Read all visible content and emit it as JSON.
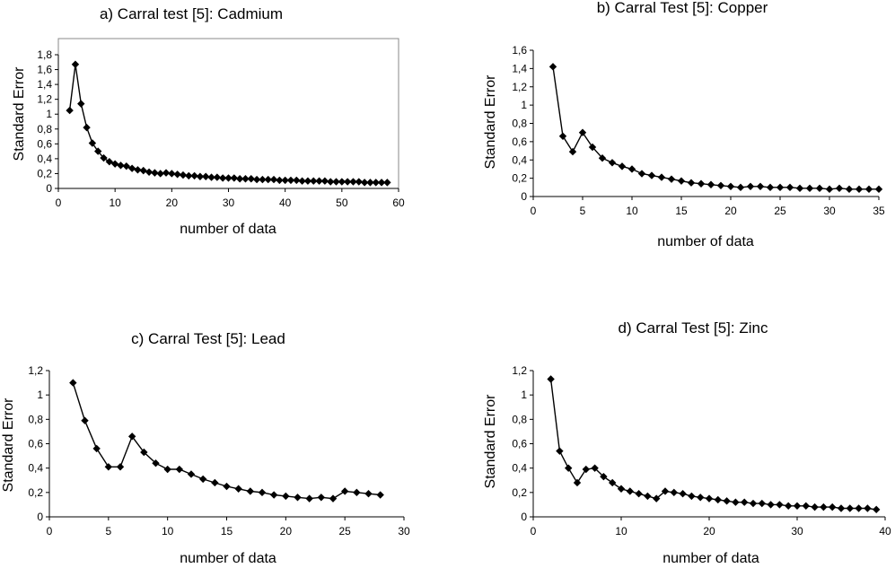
{
  "chart_data": [
    {
      "id": "a",
      "type": "line",
      "title": "a) Carral test [5]: Cadmium",
      "xlabel": "number of data",
      "ylabel": "Standard Error",
      "xlim": [
        0,
        60
      ],
      "ylim": [
        0,
        1.8
      ],
      "xticks": [
        "0",
        "10",
        "20",
        "30",
        "40",
        "50",
        "60"
      ],
      "yticks": [
        "0",
        "0,2",
        "0,4",
        "0,6",
        "0,8",
        "1",
        "1,2",
        "1,4",
        "1,6",
        "1,8"
      ],
      "frame": true,
      "grid": false,
      "marker": "diamond",
      "x": [
        2,
        3,
        4,
        5,
        6,
        7,
        8,
        9,
        10,
        11,
        12,
        13,
        14,
        15,
        16,
        17,
        18,
        19,
        20,
        21,
        22,
        23,
        24,
        25,
        26,
        27,
        28,
        29,
        30,
        31,
        32,
        33,
        34,
        35,
        36,
        37,
        38,
        39,
        40,
        41,
        42,
        43,
        44,
        45,
        46,
        47,
        48,
        49,
        50,
        51,
        52,
        53,
        54,
        55,
        56,
        57,
        58
      ],
      "y": [
        1.05,
        1.67,
        1.14,
        0.82,
        0.61,
        0.5,
        0.41,
        0.36,
        0.33,
        0.31,
        0.3,
        0.27,
        0.25,
        0.24,
        0.22,
        0.21,
        0.2,
        0.21,
        0.2,
        0.19,
        0.18,
        0.17,
        0.17,
        0.16,
        0.16,
        0.15,
        0.15,
        0.14,
        0.14,
        0.14,
        0.13,
        0.13,
        0.13,
        0.12,
        0.12,
        0.12,
        0.12,
        0.11,
        0.11,
        0.11,
        0.11,
        0.1,
        0.1,
        0.1,
        0.1,
        0.1,
        0.09,
        0.09,
        0.09,
        0.09,
        0.09,
        0.09,
        0.08,
        0.08,
        0.08,
        0.08,
        0.08
      ]
    },
    {
      "id": "b",
      "type": "line",
      "title": "b) Carral Test [5]: Copper",
      "xlabel": "number of data",
      "ylabel": "Standard Error",
      "xlim": [
        0,
        35
      ],
      "ylim": [
        0,
        1.6
      ],
      "xticks": [
        "0",
        "5",
        "10",
        "15",
        "20",
        "25",
        "30",
        "35"
      ],
      "yticks": [
        "0",
        "0,2",
        "0,4",
        "0,6",
        "0,8",
        "1",
        "1,2",
        "1,4",
        "1,6"
      ],
      "frame": false,
      "grid": false,
      "marker": "diamond",
      "x": [
        2,
        3,
        4,
        5,
        6,
        7,
        8,
        9,
        10,
        11,
        12,
        13,
        14,
        15,
        16,
        17,
        18,
        19,
        20,
        21,
        22,
        23,
        24,
        25,
        26,
        27,
        28,
        29,
        30,
        31,
        32,
        33,
        34,
        35
      ],
      "y": [
        1.42,
        0.66,
        0.49,
        0.7,
        0.54,
        0.42,
        0.37,
        0.33,
        0.3,
        0.25,
        0.23,
        0.21,
        0.19,
        0.17,
        0.15,
        0.14,
        0.13,
        0.12,
        0.11,
        0.1,
        0.11,
        0.11,
        0.1,
        0.1,
        0.1,
        0.09,
        0.09,
        0.09,
        0.08,
        0.09,
        0.08,
        0.08,
        0.08,
        0.08
      ]
    },
    {
      "id": "c",
      "type": "line",
      "title": "c) Carral Test [5]: Lead",
      "xlabel": "number of data",
      "ylabel": "Standard Error",
      "xlim": [
        0,
        30
      ],
      "ylim": [
        0,
        1.2
      ],
      "xticks": [
        "0",
        "5",
        "10",
        "15",
        "20",
        "25",
        "30"
      ],
      "yticks": [
        "0",
        "0,2",
        "0,4",
        "0,6",
        "0,8",
        "1",
        "1,2"
      ],
      "frame": false,
      "grid": false,
      "marker": "diamond",
      "x": [
        2,
        3,
        4,
        5,
        6,
        7,
        8,
        9,
        10,
        11,
        12,
        13,
        14,
        15,
        16,
        17,
        18,
        19,
        20,
        21,
        22,
        23,
        24,
        25,
        26,
        27,
        28
      ],
      "y": [
        1.1,
        0.79,
        0.56,
        0.41,
        0.41,
        0.66,
        0.53,
        0.44,
        0.39,
        0.39,
        0.35,
        0.31,
        0.28,
        0.25,
        0.23,
        0.21,
        0.2,
        0.18,
        0.17,
        0.16,
        0.15,
        0.16,
        0.15,
        0.21,
        0.2,
        0.19,
        0.18
      ]
    },
    {
      "id": "d",
      "type": "line",
      "title": "d) Carral Test [5]: Zinc",
      "xlabel": "number of data",
      "ylabel": "Standard Error",
      "xlim": [
        0,
        40
      ],
      "ylim": [
        0,
        1.2
      ],
      "xticks": [
        "0",
        "10",
        "20",
        "30",
        "40"
      ],
      "yticks": [
        "0",
        "0,2",
        "0,4",
        "0,6",
        "0,8",
        "1",
        "1,2"
      ],
      "frame": false,
      "grid": false,
      "marker": "diamond",
      "x": [
        2,
        3,
        4,
        5,
        6,
        7,
        8,
        9,
        10,
        11,
        12,
        13,
        14,
        15,
        16,
        17,
        18,
        19,
        20,
        21,
        22,
        23,
        24,
        25,
        26,
        27,
        28,
        29,
        30,
        31,
        32,
        33,
        34,
        35,
        36,
        37,
        38,
        39
      ],
      "y": [
        1.13,
        0.54,
        0.4,
        0.28,
        0.39,
        0.4,
        0.33,
        0.28,
        0.23,
        0.21,
        0.19,
        0.17,
        0.15,
        0.21,
        0.2,
        0.19,
        0.17,
        0.16,
        0.15,
        0.14,
        0.13,
        0.12,
        0.12,
        0.11,
        0.11,
        0.1,
        0.1,
        0.09,
        0.09,
        0.09,
        0.08,
        0.08,
        0.08,
        0.07,
        0.07,
        0.07,
        0.07,
        0.06
      ]
    }
  ]
}
